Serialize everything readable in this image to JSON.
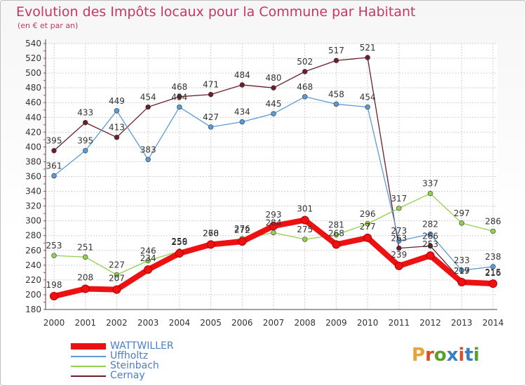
{
  "title": "Evolution des Impôts locaux pour la Commune par Habitant",
  "subtitle": "(en € et par an)",
  "brand": {
    "text": "Proxiti",
    "colors": [
      "#e8a23a",
      "#d94f2b",
      "#5aa02c",
      "#3a7fc1",
      "#d94f2b",
      "#3a7fc1",
      "#5aa02c"
    ]
  },
  "chart_data": {
    "type": "line",
    "x": [
      "2000",
      "2001",
      "2002",
      "2003",
      "2004",
      "2005",
      "2006",
      "2007",
      "2008",
      "2009",
      "2010",
      "2011",
      "2012",
      "2013",
      "2014"
    ],
    "ylim": [
      180,
      540
    ],
    "yticks": [
      180,
      200,
      220,
      240,
      260,
      280,
      300,
      320,
      340,
      360,
      380,
      400,
      420,
      440,
      460,
      480,
      500,
      520,
      540
    ],
    "grid": true,
    "legend_position": "bottom-left",
    "series": [
      {
        "name": "WATTWILLER",
        "color": "#ee1111",
        "values": [
          198,
          208,
          207,
          234,
          256,
          268,
          272,
          293,
          301,
          268,
          277,
          239,
          253,
          217,
          215
        ]
      },
      {
        "name": "Uffholtz",
        "color": "#5b9bd5",
        "values": [
          361,
          395,
          449,
          383,
          454,
          427,
          434,
          445,
          468,
          458,
          454,
          273,
          282,
          233,
          238
        ]
      },
      {
        "name": "Steinbach",
        "color": "#92d050",
        "values": [
          253,
          251,
          227,
          246,
          259,
          270,
          276,
          284,
          275,
          281,
          296,
          317,
          337,
          297,
          286
        ]
      },
      {
        "name": "Cernay",
        "color": "#6b1f2a",
        "values": [
          395,
          433,
          413,
          454,
          468,
          471,
          484,
          480,
          502,
          517,
          521,
          263,
          266,
          219,
          216
        ]
      }
    ],
    "point_labels": [
      {
        "series": "WATTWILLER",
        "values": [
          "198",
          "208",
          "207",
          "234",
          "256",
          "268",
          "272",
          "293",
          "301",
          "268",
          "277",
          "239",
          "253",
          "217",
          "215"
        ]
      },
      {
        "series": "Uffholtz",
        "values": [
          "361",
          "395",
          "449",
          "383",
          "454",
          "427",
          "434",
          "445",
          "468",
          "458",
          "454",
          "273",
          "282",
          "233",
          "238"
        ]
      },
      {
        "series": "Steinbach",
        "values": [
          "253",
          "251",
          "227",
          "246",
          "259",
          "270",
          "276",
          "284",
          "275",
          "281",
          "296",
          "317",
          "337",
          "297",
          "286"
        ]
      },
      {
        "series": "Cernay",
        "values": [
          "395",
          "433",
          "413",
          "454",
          "468",
          "471",
          "484",
          "480",
          "502",
          "517",
          "521",
          "263",
          "266",
          "219",
          "216"
        ]
      }
    ]
  }
}
